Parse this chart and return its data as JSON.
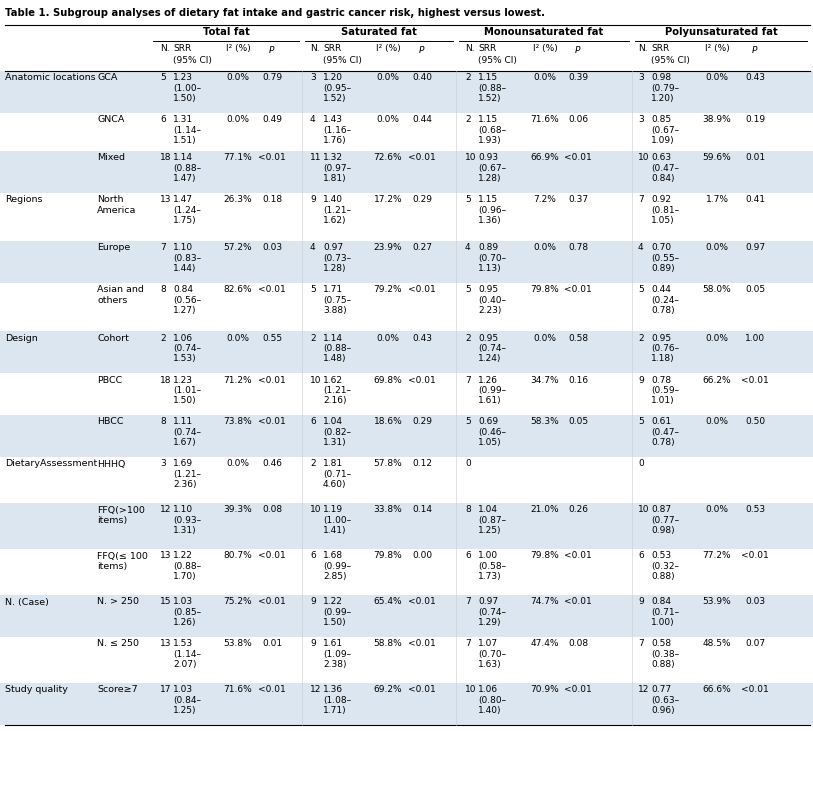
{
  "title": "Table 1. Subgroup analyses of dietary fat intake and gastric cancer risk, highest versus lowest.",
  "col_groups": [
    "Total fat",
    "Saturated fat",
    "Monounsaturated fat",
    "Polyunsaturated fat"
  ],
  "rows": [
    {
      "group": "Anatomic locations",
      "subgroup": "GCA",
      "tf": {
        "n": "5",
        "srr": "1.23\n(1.00–\n1.50)",
        "i2": "0.0%",
        "p": "0.79"
      },
      "sf": {
        "n": "3",
        "srr": "1.20\n(0.95–\n1.52)",
        "i2": "0.0%",
        "p": "0.40"
      },
      "mf": {
        "n": "2",
        "srr": "1.15\n(0.88–\n1.52)",
        "i2": "0.0%",
        "p": "0.39"
      },
      "pf": {
        "n": "3",
        "srr": "0.98\n(0.79–\n1.20)",
        "i2": "0.0%",
        "p": "0.43"
      },
      "shade": true
    },
    {
      "group": "",
      "subgroup": "GNCA",
      "tf": {
        "n": "6",
        "srr": "1.31\n(1.14–\n1.51)",
        "i2": "0.0%",
        "p": "0.49"
      },
      "sf": {
        "n": "4",
        "srr": "1.43\n(1.16–\n1.76)",
        "i2": "0.0%",
        "p": "0.44"
      },
      "mf": {
        "n": "2",
        "srr": "1.15\n(0.68–\n1.93)",
        "i2": "71.6%",
        "p": "0.06"
      },
      "pf": {
        "n": "3",
        "srr": "0.85\n(0.67–\n1.09)",
        "i2": "38.9%",
        "p": "0.19"
      },
      "shade": false
    },
    {
      "group": "",
      "subgroup": "Mixed",
      "tf": {
        "n": "18",
        "srr": "1.14\n(0.88–\n1.47)",
        "i2": "77.1%",
        "p": "<0.01"
      },
      "sf": {
        "n": "11",
        "srr": "1.32\n(0.97–\n1.81)",
        "i2": "72.6%",
        "p": "<0.01"
      },
      "mf": {
        "n": "10",
        "srr": "0.93\n(0.67–\n1.28)",
        "i2": "66.9%",
        "p": "<0.01"
      },
      "pf": {
        "n": "10",
        "srr": "0.63\n(0.47–\n0.84)",
        "i2": "59.6%",
        "p": "0.01"
      },
      "shade": true
    },
    {
      "group": "Regions",
      "subgroup": "North\nAmerica",
      "tf": {
        "n": "13",
        "srr": "1.47\n(1.24–\n1.75)",
        "i2": "26.3%",
        "p": "0.18"
      },
      "sf": {
        "n": "9",
        "srr": "1.40\n(1.21–\n1.62)",
        "i2": "17.2%",
        "p": "0.29"
      },
      "mf": {
        "n": "5",
        "srr": "1.15\n(0.96–\n1.36)",
        "i2": "7.2%",
        "p": "0.37"
      },
      "pf": {
        "n": "7",
        "srr": "0.92\n(0.81–\n1.05)",
        "i2": "1.7%",
        "p": "0.41"
      },
      "shade": false
    },
    {
      "group": "",
      "subgroup": "Europe",
      "tf": {
        "n": "7",
        "srr": "1.10\n(0.83–\n1.44)",
        "i2": "57.2%",
        "p": "0.03"
      },
      "sf": {
        "n": "4",
        "srr": "0.97\n(0.73–\n1.28)",
        "i2": "23.9%",
        "p": "0.27"
      },
      "mf": {
        "n": "4",
        "srr": "0.89\n(0.70–\n1.13)",
        "i2": "0.0%",
        "p": "0.78"
      },
      "pf": {
        "n": "4",
        "srr": "0.70\n(0.55–\n0.89)",
        "i2": "0.0%",
        "p": "0.97"
      },
      "shade": true
    },
    {
      "group": "",
      "subgroup": "Asian and\nothers",
      "tf": {
        "n": "8",
        "srr": "0.84\n(0.56–\n1.27)",
        "i2": "82.6%",
        "p": "<0.01"
      },
      "sf": {
        "n": "5",
        "srr": "1.71\n(0.75–\n3.88)",
        "i2": "79.2%",
        "p": "<0.01"
      },
      "mf": {
        "n": "5",
        "srr": "0.95\n(0.40–\n2.23)",
        "i2": "79.8%",
        "p": "<0.01"
      },
      "pf": {
        "n": "5",
        "srr": "0.44\n(0.24–\n0.78)",
        "i2": "58.0%",
        "p": "0.05"
      },
      "shade": false
    },
    {
      "group": "Design",
      "subgroup": "Cohort",
      "tf": {
        "n": "2",
        "srr": "1.06\n(0.74–\n1.53)",
        "i2": "0.0%",
        "p": "0.55"
      },
      "sf": {
        "n": "2",
        "srr": "1.14\n(0.88–\n1.48)",
        "i2": "0.0%",
        "p": "0.43"
      },
      "mf": {
        "n": "2",
        "srr": "0.95\n(0.74–\n1.24)",
        "i2": "0.0%",
        "p": "0.58"
      },
      "pf": {
        "n": "2",
        "srr": "0.95\n(0.76–\n1.18)",
        "i2": "0.0%",
        "p": "1.00"
      },
      "shade": true
    },
    {
      "group": "",
      "subgroup": "PBCC",
      "tf": {
        "n": "18",
        "srr": "1.23\n(1.01–\n1.50)",
        "i2": "71.2%",
        "p": "<0.01"
      },
      "sf": {
        "n": "10",
        "srr": "1.62\n(1.21–\n2.16)",
        "i2": "69.8%",
        "p": "<0.01"
      },
      "mf": {
        "n": "7",
        "srr": "1.26\n(0.99–\n1.61)",
        "i2": "34.7%",
        "p": "0.16"
      },
      "pf": {
        "n": "9",
        "srr": "0.78\n(0.59–\n1.01)",
        "i2": "66.2%",
        "p": "<0.01"
      },
      "shade": false
    },
    {
      "group": "",
      "subgroup": "HBCC",
      "tf": {
        "n": "8",
        "srr": "1.11\n(0.74–\n1.67)",
        "i2": "73.8%",
        "p": "<0.01"
      },
      "sf": {
        "n": "6",
        "srr": "1.04\n(0.82–\n1.31)",
        "i2": "18.6%",
        "p": "0.29"
      },
      "mf": {
        "n": "5",
        "srr": "0.69\n(0.46–\n1.05)",
        "i2": "58.3%",
        "p": "0.05"
      },
      "pf": {
        "n": "5",
        "srr": "0.61\n(0.47–\n0.78)",
        "i2": "0.0%",
        "p": "0.50"
      },
      "shade": true
    },
    {
      "group": "DietaryAssessment",
      "subgroup": "HHHQ",
      "tf": {
        "n": "3",
        "srr": "1.69\n(1.21–\n2.36)",
        "i2": "0.0%",
        "p": "0.46"
      },
      "sf": {
        "n": "2",
        "srr": "1.81\n(0.71–\n4.60)",
        "i2": "57.8%",
        "p": "0.12"
      },
      "mf": {
        "n": "0",
        "srr": "",
        "i2": "",
        "p": ""
      },
      "pf": {
        "n": "0",
        "srr": "",
        "i2": "",
        "p": ""
      },
      "shade": false
    },
    {
      "group": "",
      "subgroup": "FFQ(>100\nitems)",
      "tf": {
        "n": "12",
        "srr": "1.10\n(0.93–\n1.31)",
        "i2": "39.3%",
        "p": "0.08"
      },
      "sf": {
        "n": "10",
        "srr": "1.19\n(1.00–\n1.41)",
        "i2": "33.8%",
        "p": "0.14"
      },
      "mf": {
        "n": "8",
        "srr": "1.04\n(0.87–\n1.25)",
        "i2": "21.0%",
        "p": "0.26"
      },
      "pf": {
        "n": "10",
        "srr": "0.87\n(0.77–\n0.98)",
        "i2": "0.0%",
        "p": "0.53"
      },
      "shade": true
    },
    {
      "group": "",
      "subgroup": "FFQ(≤ 100\nitems)",
      "tf": {
        "n": "13",
        "srr": "1.22\n(0.88–\n1.70)",
        "i2": "80.7%",
        "p": "<0.01"
      },
      "sf": {
        "n": "6",
        "srr": "1.68\n(0.99–\n2.85)",
        "i2": "79.8%",
        "p": "0.00"
      },
      "mf": {
        "n": "6",
        "srr": "1.00\n(0.58–\n1.73)",
        "i2": "79.8%",
        "p": "<0.01"
      },
      "pf": {
        "n": "6",
        "srr": "0.53\n(0.32–\n0.88)",
        "i2": "77.2%",
        "p": "<0.01"
      },
      "shade": false
    },
    {
      "group": "N. (Case)",
      "subgroup": "N. > 250",
      "tf": {
        "n": "15",
        "srr": "1.03\n(0.85–\n1.26)",
        "i2": "75.2%",
        "p": "<0.01"
      },
      "sf": {
        "n": "9",
        "srr": "1.22\n(0.99–\n1.50)",
        "i2": "65.4%",
        "p": "<0.01"
      },
      "mf": {
        "n": "7",
        "srr": "0.97\n(0.74–\n1.29)",
        "i2": "74.7%",
        "p": "<0.01"
      },
      "pf": {
        "n": "9",
        "srr": "0.84\n(0.71–\n1.00)",
        "i2": "53.9%",
        "p": "0.03"
      },
      "shade": true
    },
    {
      "group": "",
      "subgroup": "N. ≤ 250",
      "tf": {
        "n": "13",
        "srr": "1.53\n(1.14–\n2.07)",
        "i2": "53.8%",
        "p": "0.01"
      },
      "sf": {
        "n": "9",
        "srr": "1.61\n(1.09–\n2.38)",
        "i2": "58.8%",
        "p": "<0.01"
      },
      "mf": {
        "n": "7",
        "srr": "1.07\n(0.70–\n1.63)",
        "i2": "47.4%",
        "p": "0.08"
      },
      "pf": {
        "n": "7",
        "srr": "0.58\n(0.38–\n0.88)",
        "i2": "48.5%",
        "p": "0.07"
      },
      "shade": false
    },
    {
      "group": "Study quality",
      "subgroup": "Score≥7",
      "tf": {
        "n": "17",
        "srr": "1.03\n(0.84–\n1.25)",
        "i2": "71.6%",
        "p": "<0.01"
      },
      "sf": {
        "n": "12",
        "srr": "1.36\n(1.08–\n1.71)",
        "i2": "69.2%",
        "p": "<0.01"
      },
      "mf": {
        "n": "10",
        "srr": "1.06\n(0.80–\n1.40)",
        "i2": "70.9%",
        "p": "<0.01"
      },
      "pf": {
        "n": "12",
        "srr": "0.77\n(0.63–\n0.96)",
        "i2": "66.6%",
        "p": "<0.01"
      },
      "shade": true
    }
  ],
  "shade_color": "#dce6f0",
  "bg_color": "#ffffff"
}
